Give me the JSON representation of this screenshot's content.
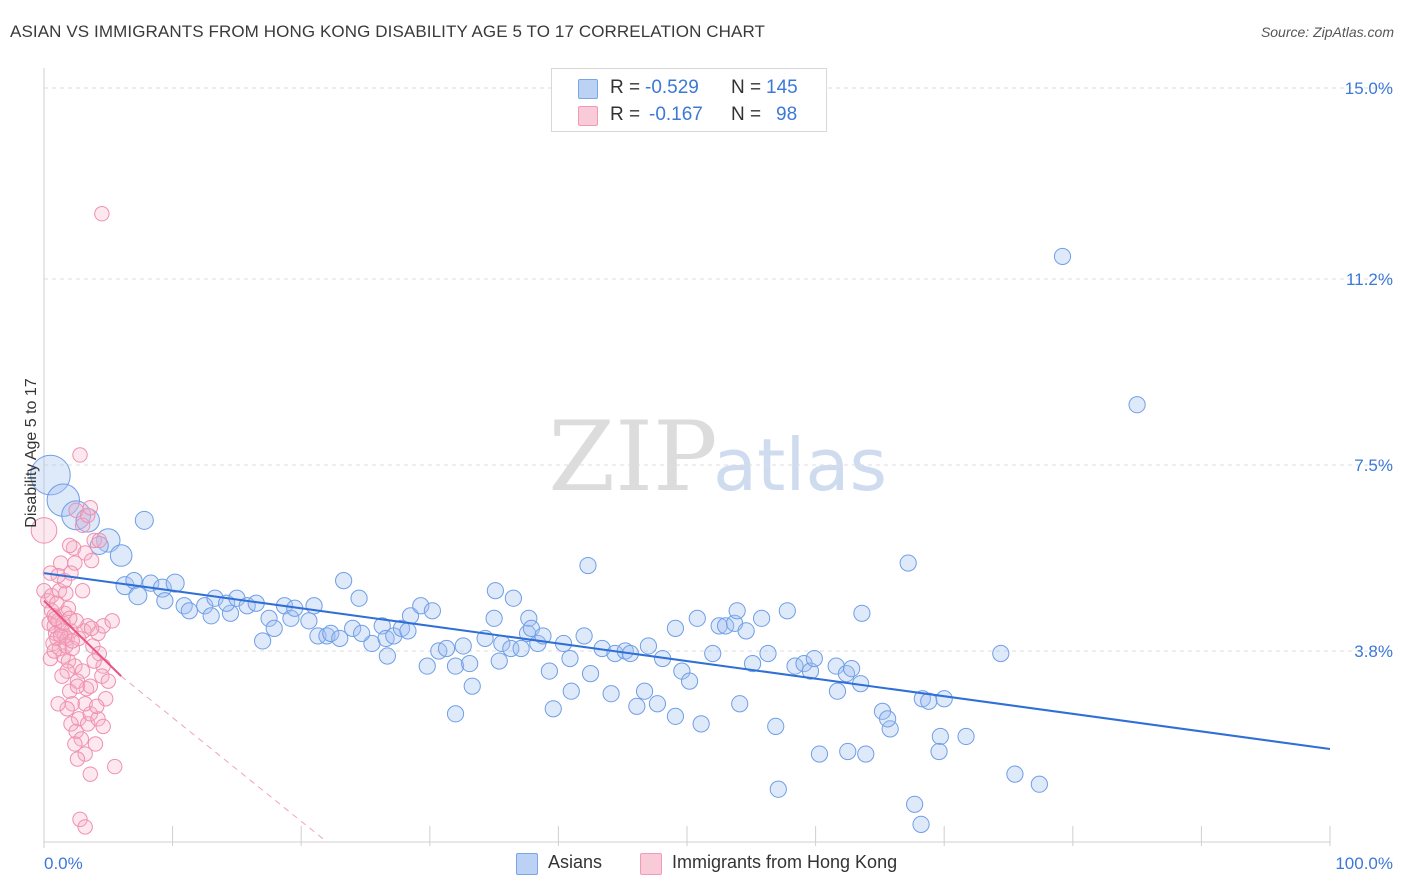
{
  "header": {
    "title": "ASIAN VS IMMIGRANTS FROM HONG KONG DISABILITY AGE 5 TO 17 CORRELATION CHART",
    "source": "Source: ZipAtlas.com"
  },
  "watermark": {
    "zip": "ZIP",
    "atlas": "atlas"
  },
  "legend": {
    "rows": [
      {
        "r_label": "R =",
        "r_value": "-0.529",
        "n_label": "N =",
        "n_value": "145",
        "color": "#a8c4f0"
      },
      {
        "r_label": "R =",
        "r_value": "-0.167",
        "n_label": "N =",
        "n_value": "98",
        "color": "#f6b6c8"
      }
    ]
  },
  "bottom_legend": {
    "asians": "Asians",
    "hongkong": "Immigrants from Hong Kong"
  },
  "chart_data": {
    "type": "scatter",
    "title": "ASIAN VS IMMIGRANTS FROM HONG KONG DISABILITY AGE 5 TO 17 CORRELATION CHART",
    "xlabel": "",
    "ylabel": "Disability Age 5 to 17",
    "xlim": [
      0,
      100
    ],
    "ylim": [
      0,
      15.2
    ],
    "x_tick_labels": [
      "0.0%",
      "100.0%"
    ],
    "y_ticks": [
      3.8,
      7.5,
      11.2,
      15.0
    ],
    "y_tick_labels": [
      "3.8%",
      "7.5%",
      "11.2%",
      "15.0%"
    ],
    "grid": true,
    "legend_position": "top-center",
    "colors": {
      "asians": "#7aa6e8",
      "asians_line": "#2f6fd6",
      "hongkong": "#f29ab6",
      "hongkong_line": "#e85585"
    },
    "series": [
      {
        "name": "Asians",
        "trend": {
          "x": [
            0,
            100
          ],
          "y": [
            5.35,
            1.85
          ]
        },
        "points": [
          [
            0.5,
            7.3,
            2.2
          ],
          [
            1.5,
            6.8,
            1.8
          ],
          [
            2.5,
            6.5,
            1.6
          ],
          [
            3.4,
            6.4,
            1.3
          ],
          [
            5,
            6,
            1.3
          ],
          [
            4.3,
            5.9,
            1.0
          ],
          [
            6,
            5.7,
            1.2
          ],
          [
            7.8,
            6.4,
            1.0
          ],
          [
            6.3,
            5.1,
            1.0
          ],
          [
            7,
            5.2,
            0.9
          ],
          [
            7.3,
            4.9,
            1.0
          ],
          [
            8.3,
            5.15,
            0.9
          ],
          [
            9.2,
            5.05,
            1.0
          ],
          [
            10.2,
            5.15,
            1.0
          ],
          [
            9.4,
            4.8,
            0.9
          ],
          [
            10.9,
            4.7,
            0.9
          ],
          [
            12.5,
            4.7,
            0.9
          ],
          [
            11.3,
            4.6,
            0.9
          ],
          [
            13.3,
            4.85,
            0.9
          ],
          [
            13,
            4.5,
            0.9
          ],
          [
            14.5,
            4.55,
            0.9
          ],
          [
            14.2,
            4.75,
            0.9
          ],
          [
            15,
            4.85,
            0.9
          ],
          [
            15.8,
            4.7,
            0.9
          ],
          [
            16.5,
            4.75,
            0.9
          ],
          [
            17,
            4.0,
            0.9
          ],
          [
            17.5,
            4.45,
            0.9
          ],
          [
            17.9,
            4.25,
            0.9
          ],
          [
            18.7,
            4.7,
            0.9
          ],
          [
            19.2,
            4.45,
            0.9
          ],
          [
            19.5,
            4.65,
            0.9
          ],
          [
            20.6,
            4.4,
            0.9
          ],
          [
            21,
            4.7,
            0.9
          ],
          [
            21.3,
            4.1,
            0.9
          ],
          [
            22,
            4.1,
            0.9
          ],
          [
            22.3,
            4.15,
            0.9
          ],
          [
            23.3,
            5.2,
            0.9
          ],
          [
            23,
            4.05,
            0.9
          ],
          [
            24,
            4.25,
            0.9
          ],
          [
            24.5,
            4.85,
            0.9
          ],
          [
            25.5,
            3.95,
            0.9
          ],
          [
            24.7,
            4.15,
            0.9
          ],
          [
            26.3,
            4.3,
            0.9
          ],
          [
            26.6,
            4.05,
            0.9
          ],
          [
            27.2,
            4.1,
            0.9
          ],
          [
            27.8,
            4.25,
            0.9
          ],
          [
            26.7,
            3.7,
            0.9
          ],
          [
            28.5,
            4.5,
            0.9
          ],
          [
            28.3,
            4.2,
            0.9
          ],
          [
            29.3,
            4.7,
            0.9
          ],
          [
            30.2,
            4.6,
            0.9
          ],
          [
            29.8,
            3.5,
            0.9
          ],
          [
            30.7,
            3.8,
            0.9
          ],
          [
            31.3,
            3.85,
            0.9
          ],
          [
            32,
            3.5,
            0.9
          ],
          [
            32.6,
            3.9,
            0.9
          ],
          [
            32,
            2.55,
            0.9
          ],
          [
            33.1,
            3.55,
            0.9
          ],
          [
            33.3,
            3.1,
            0.9
          ],
          [
            34.3,
            4.05,
            0.9
          ],
          [
            35,
            4.45,
            0.9
          ],
          [
            35.4,
            3.6,
            0.9
          ],
          [
            35.6,
            3.95,
            0.9
          ],
          [
            35.1,
            5.0,
            0.9
          ],
          [
            36.3,
            3.85,
            0.9
          ],
          [
            36.5,
            4.85,
            0.9
          ],
          [
            37.1,
            3.85,
            0.9
          ],
          [
            37.7,
            4.45,
            0.9
          ],
          [
            37.6,
            4.15,
            0.9
          ],
          [
            37.9,
            4.25,
            0.9
          ],
          [
            38.4,
            3.95,
            0.9
          ],
          [
            38.8,
            4.1,
            0.9
          ],
          [
            39.3,
            3.4,
            0.9
          ],
          [
            39.6,
            2.65,
            0.9
          ],
          [
            40.4,
            3.95,
            0.9
          ],
          [
            41,
            3.0,
            0.9
          ],
          [
            40.9,
            3.65,
            0.9
          ],
          [
            42,
            4.1,
            0.9
          ],
          [
            42.3,
            5.5,
            0.9
          ],
          [
            42.5,
            3.35,
            0.9
          ],
          [
            43.4,
            3.85,
            0.9
          ],
          [
            44.1,
            2.95,
            0.9
          ],
          [
            44.4,
            3.75,
            0.9
          ],
          [
            45.2,
            3.8,
            0.9
          ],
          [
            45.6,
            3.75,
            0.9
          ],
          [
            46.1,
            2.7,
            0.9
          ],
          [
            46.7,
            3.0,
            0.9
          ],
          [
            47,
            3.9,
            0.9
          ],
          [
            47.7,
            2.75,
            0.9
          ],
          [
            48.1,
            3.65,
            0.9
          ],
          [
            49.1,
            2.5,
            0.9
          ],
          [
            49.6,
            3.4,
            0.9
          ],
          [
            49.1,
            4.25,
            0.9
          ],
          [
            50.2,
            3.2,
            0.9
          ],
          [
            50.8,
            4.45,
            0.9
          ],
          [
            51.1,
            2.35,
            0.9
          ],
          [
            52,
            3.75,
            0.9
          ],
          [
            52.5,
            4.3,
            0.9
          ],
          [
            53,
            4.3,
            0.9
          ],
          [
            53.7,
            4.35,
            0.9
          ],
          [
            53.9,
            4.6,
            0.9
          ],
          [
            54.1,
            2.75,
            0.9
          ],
          [
            54.6,
            4.2,
            0.9
          ],
          [
            55.1,
            3.55,
            0.9
          ],
          [
            55.8,
            4.45,
            0.9
          ],
          [
            56.3,
            3.75,
            0.9
          ],
          [
            56.9,
            2.3,
            0.9
          ],
          [
            57.1,
            1.05,
            0.9
          ],
          [
            57.8,
            4.6,
            0.9
          ],
          [
            58.4,
            3.5,
            0.9
          ],
          [
            59.1,
            3.55,
            0.9
          ],
          [
            59.6,
            3.4,
            0.9
          ],
          [
            59.9,
            3.65,
            0.9
          ],
          [
            60.3,
            1.75,
            0.9
          ],
          [
            61.7,
            3.0,
            0.9
          ],
          [
            61.6,
            3.5,
            0.9
          ],
          [
            62.4,
            3.35,
            0.9
          ],
          [
            62.8,
            3.45,
            0.9
          ],
          [
            62.5,
            1.8,
            0.9
          ],
          [
            63.6,
            4.55,
            0.9
          ],
          [
            63.5,
            3.15,
            0.9
          ],
          [
            63.9,
            1.75,
            0.9
          ],
          [
            65.2,
            2.6,
            0.9
          ],
          [
            65.8,
            2.25,
            0.9
          ],
          [
            65.6,
            2.45,
            0.9
          ],
          [
            67.2,
            5.55,
            0.9
          ],
          [
            67.7,
            0.75,
            0.9
          ],
          [
            68.3,
            2.85,
            0.9
          ],
          [
            68.8,
            2.8,
            0.9
          ],
          [
            69.7,
            2.1,
            0.9
          ],
          [
            69.6,
            1.8,
            0.9
          ],
          [
            70,
            2.85,
            0.9
          ],
          [
            68.2,
            0.35,
            0.9
          ],
          [
            71.7,
            2.1,
            0.9
          ],
          [
            74.4,
            3.75,
            0.9
          ],
          [
            75.5,
            1.35,
            0.9
          ],
          [
            77.4,
            1.15,
            0.9
          ],
          [
            79.2,
            11.65,
            0.9
          ],
          [
            85,
            8.7,
            0.9
          ]
        ]
      },
      {
        "name": "Immigrants from Hong Kong",
        "trend_solid": {
          "x": [
            0,
            6
          ],
          "y": [
            4.8,
            3.3
          ]
        },
        "trend_dashed": {
          "x": [
            6,
            22
          ],
          "y": [
            3.3,
            0
          ]
        },
        "points": [
          [
            0,
            6.2,
            1.6
          ],
          [
            0,
            5.0,
            0.9
          ],
          [
            0.3,
            4.8,
            0.9
          ],
          [
            0.6,
            4.6,
            0.9
          ],
          [
            0.8,
            4.5,
            0.9
          ],
          [
            0.4,
            4.35,
            0.9
          ],
          [
            0.8,
            4.3,
            0.9
          ],
          [
            1.1,
            4.4,
            0.9
          ],
          [
            0.9,
            4.15,
            0.9
          ],
          [
            1.4,
            4.2,
            0.9
          ],
          [
            1.6,
            4.1,
            0.9
          ],
          [
            0.7,
            3.95,
            0.9
          ],
          [
            1.2,
            3.85,
            0.9
          ],
          [
            1.5,
            3.7,
            0.9
          ],
          [
            0.5,
            3.65,
            0.9
          ],
          [
            1.0,
            4.05,
            0.9
          ],
          [
            1.8,
            4.05,
            0.9
          ],
          [
            2.1,
            4.2,
            0.9
          ],
          [
            1.6,
            4.55,
            0.9
          ],
          [
            1.9,
            4.65,
            0.9
          ],
          [
            0.6,
            4.9,
            0.9
          ],
          [
            1.2,
            5.0,
            0.9
          ],
          [
            1.7,
            4.95,
            0.9
          ],
          [
            0.5,
            5.35,
            0.9
          ],
          [
            1.3,
            5.55,
            0.9
          ],
          [
            1.6,
            5.2,
            0.9
          ],
          [
            2.4,
            5.55,
            0.9
          ],
          [
            2.3,
            5.85,
            0.9
          ],
          [
            3.2,
            5.75,
            0.9
          ],
          [
            3.9,
            6.0,
            0.9
          ],
          [
            4.3,
            6.0,
            0.9
          ],
          [
            3.0,
            6.3,
            0.9
          ],
          [
            2.5,
            6.6,
            0.9
          ],
          [
            3.4,
            6.5,
            0.9
          ],
          [
            3.6,
            6.65,
            0.9
          ],
          [
            2.0,
            5.9,
            0.9
          ],
          [
            2.8,
            7.7,
            0.9
          ],
          [
            4.5,
            12.5,
            0.9
          ],
          [
            1.9,
            3.6,
            0.9
          ],
          [
            2.4,
            3.5,
            0.9
          ],
          [
            3.0,
            3.4,
            0.9
          ],
          [
            2.6,
            3.2,
            0.9
          ],
          [
            3.3,
            3.05,
            0.9
          ],
          [
            2.0,
            3.0,
            0.9
          ],
          [
            2.2,
            2.75,
            0.9
          ],
          [
            1.8,
            2.65,
            0.9
          ],
          [
            2.7,
            2.45,
            0.9
          ],
          [
            2.1,
            2.35,
            0.9
          ],
          [
            2.5,
            2.2,
            0.9
          ],
          [
            3.4,
            2.35,
            0.9
          ],
          [
            3.6,
            2.55,
            0.9
          ],
          [
            4.2,
            2.45,
            0.9
          ],
          [
            4.6,
            2.3,
            0.9
          ],
          [
            4.8,
            2.85,
            0.9
          ],
          [
            3.2,
            2.75,
            0.9
          ],
          [
            2.9,
            2.05,
            0.9
          ],
          [
            2.4,
            1.95,
            0.9
          ],
          [
            4.0,
            1.95,
            0.9
          ],
          [
            3.2,
            1.75,
            0.9
          ],
          [
            2.6,
            1.65,
            0.9
          ],
          [
            3.6,
            1.35,
            0.9
          ],
          [
            5.5,
            1.5,
            0.9
          ],
          [
            2.8,
            0.45,
            0.9
          ],
          [
            3.2,
            0.3,
            0.9
          ],
          [
            4.6,
            3.5,
            0.9
          ],
          [
            3.8,
            3.9,
            0.9
          ],
          [
            4.2,
            4.15,
            0.9
          ],
          [
            4.6,
            4.3,
            0.9
          ],
          [
            5.3,
            4.4,
            0.9
          ],
          [
            3.4,
            4.3,
            0.9
          ],
          [
            4.3,
            3.75,
            0.9
          ],
          [
            2.7,
            4.05,
            0.9
          ],
          [
            3.9,
            3.6,
            0.9
          ],
          [
            4.5,
            3.3,
            0.9
          ],
          [
            5.0,
            3.2,
            0.9
          ],
          [
            4.1,
            2.7,
            0.9
          ],
          [
            1.1,
            2.75,
            0.9
          ],
          [
            3.1,
            4.2,
            0.9
          ],
          [
            3.0,
            5.0,
            0.9
          ],
          [
            1.5,
            4.35,
            0.9
          ],
          [
            0.9,
            4.45,
            0.9
          ],
          [
            1.3,
            4.1,
            0.9
          ],
          [
            1.7,
            3.9,
            0.9
          ],
          [
            2.2,
            3.85,
            0.9
          ],
          [
            1.8,
            3.4,
            0.9
          ],
          [
            3.7,
            4.25,
            0.9
          ],
          [
            2.5,
            4.4,
            0.9
          ],
          [
            2.0,
            4.45,
            0.9
          ],
          [
            1.4,
            3.3,
            0.9
          ],
          [
            2.6,
            3.1,
            0.9
          ],
          [
            3.6,
            3.1,
            0.9
          ],
          [
            1.1,
            5.3,
            0.9
          ],
          [
            2.2,
            4.0,
            0.9
          ],
          [
            0.8,
            3.8,
            0.9
          ],
          [
            1.0,
            4.75,
            0.9
          ],
          [
            2.1,
            5.35,
            0.9
          ],
          [
            3.7,
            5.6,
            0.9
          ]
        ]
      }
    ]
  }
}
